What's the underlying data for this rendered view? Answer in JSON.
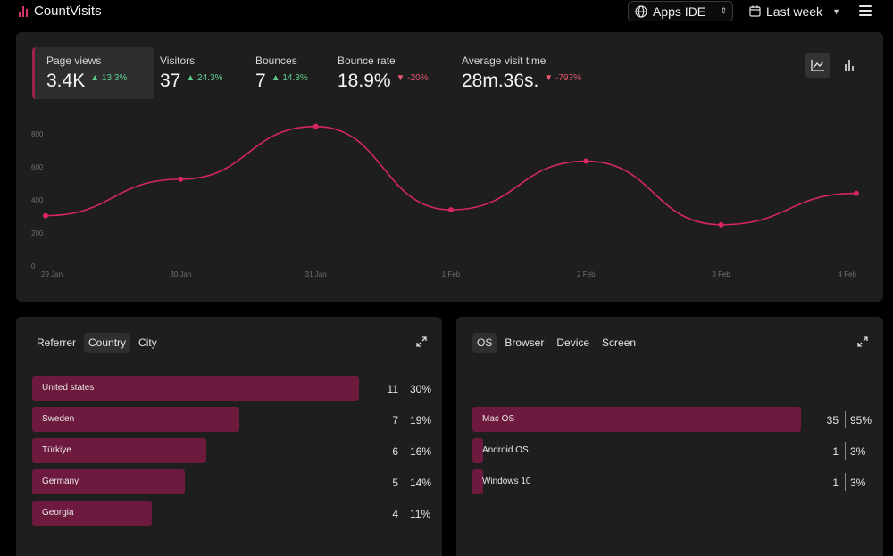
{
  "app": {
    "name": "CountVisits"
  },
  "header": {
    "site_select": {
      "label": "Apps IDE"
    },
    "range_select": {
      "label": "Last week"
    }
  },
  "stats": [
    {
      "label": "Page views",
      "value": "3.4K",
      "delta": "13.3%",
      "trend": "up",
      "active": true
    },
    {
      "label": "Visitors",
      "value": "37",
      "delta": "24.3%",
      "trend": "up",
      "active": false
    },
    {
      "label": "Bounces",
      "value": "7",
      "delta": "14.3%",
      "trend": "up",
      "active": false
    },
    {
      "label": "Bounce rate",
      "value": "18.9%",
      "delta": "-20%",
      "trend": "down",
      "active": false
    },
    {
      "label": "Average visit time",
      "value": "28m.36s.",
      "delta": "-797%",
      "trend": "down",
      "active": false
    }
  ],
  "colors": {
    "accent": "#d62762",
    "bar": "#6e1a3f",
    "up": "#5fcf8f",
    "down": "#e05a70",
    "card": "#1e1e1e"
  },
  "chart_data": {
    "type": "line",
    "x": [
      "29 Jan",
      "30 Jan",
      "31 Jan",
      "1 Feb",
      "2 Feb",
      "3 Feb",
      "4 Feb"
    ],
    "series": [
      {
        "values": [
          305,
          525,
          845,
          340,
          635,
          250,
          440
        ]
      }
    ],
    "y_ticks": [
      "0",
      "200",
      "400",
      "600",
      "800"
    ],
    "ylim": [
      0,
      800
    ],
    "grid": false
  },
  "referrer_panel": {
    "tabs": [
      "Referrer",
      "Country",
      "City"
    ],
    "active_tab": 1,
    "rows": [
      {
        "label": "United states",
        "count": "11",
        "pct": "30%",
        "share": 0.3
      },
      {
        "label": "Sweden",
        "count": "7",
        "pct": "19%",
        "share": 0.19
      },
      {
        "label": "Türkiye",
        "count": "6",
        "pct": "16%",
        "share": 0.16
      },
      {
        "label": "Germany",
        "count": "5",
        "pct": "14%",
        "share": 0.14
      },
      {
        "label": "Georgia",
        "count": "4",
        "pct": "11%",
        "share": 0.11
      }
    ]
  },
  "os_panel": {
    "tabs": [
      "OS",
      "Browser",
      "Device",
      "Screen"
    ],
    "active_tab": 0,
    "rows": [
      {
        "label": "Mac OS",
        "count": "35",
        "pct": "95%",
        "share": 0.95
      },
      {
        "label": "Android OS",
        "count": "1",
        "pct": "3%",
        "share": 0.03
      },
      {
        "label": "Windows 10",
        "count": "1",
        "pct": "3%",
        "share": 0.03
      }
    ]
  }
}
